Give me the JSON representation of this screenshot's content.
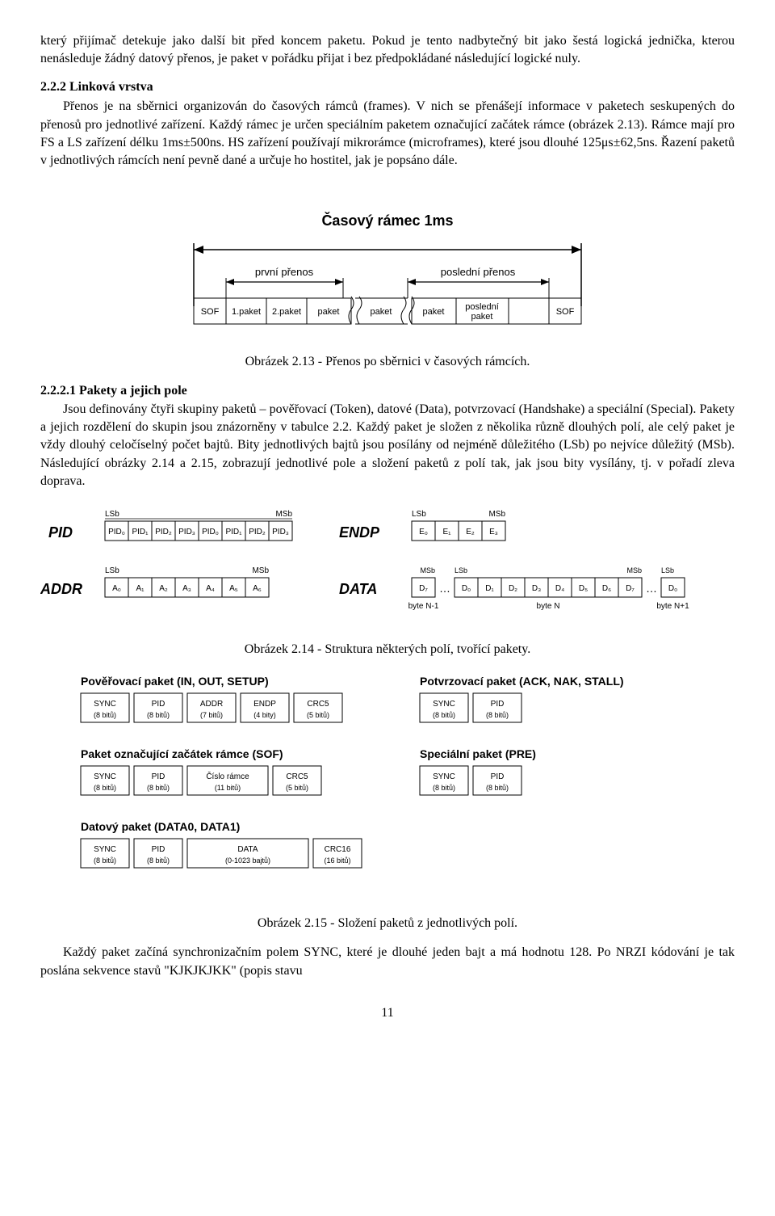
{
  "para1": "který přijímač detekuje jako další bit před koncem paketu. Pokud je tento nadbytečný bit jako šestá logická jednička, kterou nenásleduje žádný datový přenos, je paket v pořádku přijat i bez předpokládané následující logické nuly.",
  "sec222_title": "2.2.2 Linková vrstva",
  "sec222_para": "Přenos je na sběrnici organizován do časových rámců (frames). V nich se přenášejí informace v paketech seskupených do přenosů pro jednotlivé zařízení. Každý rámec je určen speciálním paketem označující začátek rámce (obrázek 2.13). Rámce mají pro FS a LS zařízení délku 1ms±500ns. HS zařízení používají mikrorámce (microframes), které jsou dlouhé 125μs±62,5ns. Řazení paketů v jednotlivých rámcích není pevně dané a určuje ho hostitel, jak je popsáno dále.",
  "fig213": {
    "title": "Časový rámec 1ms",
    "first_transfer": "první přenos",
    "last_transfer": "poslední přenos",
    "boxes": [
      "SOF",
      "1.paket",
      "2.paket",
      "paket",
      "paket",
      "poslední paket",
      "SOF"
    ]
  },
  "cap213": "Obrázek 2.13 - Přenos po sběrnici v časových rámcích.",
  "sec2221_title": "2.2.2.1 Pakety a jejich pole",
  "sec2221_para": "Jsou definovány čtyři skupiny paketů – pověřovací (Token), datové (Data), potvrzovací (Handshake) a speciální (Special). Pakety a jejich rozdělení do skupin jsou znázorněny v tabulce 2.2. Každý paket je složen z několika různě dlouhých polí, ale celý paket je vždy dlouhý celočíselný počet bajtů. Bity jednotlivých bajtů jsou posílány od nejméně důležitého (LSb) po nejvíce důležitý (MSb). Následující obrázky 2.14 a 2.15, zobrazují jednotlivé pole a složení paketů z polí tak, jak jsou bity vysílány, tj. v pořadí zleva doprava.",
  "fig214": {
    "labels": {
      "lsb": "LSb",
      "msb": "MSb"
    },
    "rows": {
      "PID": {
        "label": "PID",
        "cells": [
          "PID₀",
          "PID₁",
          "PID₂",
          "PID₃",
          "PID₀",
          "PID₁",
          "PID₂",
          "PID₃"
        ],
        "bars": [
          4,
          4
        ]
      },
      "ENDP": {
        "label": "ENDP",
        "cells": [
          "E₀",
          "E₁",
          "E₂",
          "E₃"
        ],
        "bars": []
      },
      "ADDR": {
        "label": "ADDR",
        "cells": [
          "A₀",
          "A₁",
          "A₂",
          "A₃",
          "A₄",
          "A₅",
          "A₆"
        ],
        "bars": []
      },
      "DATA": {
        "label": "DATA",
        "groups": [
          {
            "cells": [
              "D₇"
            ],
            "sub": "byte N-1",
            "lsb": false,
            "msb": true
          },
          {
            "cells": [
              "D₀",
              "D₁",
              "D₂",
              "D₃",
              "D₄",
              "D₅",
              "D₆",
              "D₇"
            ],
            "sub": "byte N",
            "lsb": true,
            "msb": true
          },
          {
            "cells": [
              "D₀"
            ],
            "sub": "byte N+1",
            "lsb": true,
            "msb": false
          }
        ]
      }
    }
  },
  "cap214": "Obrázek 2.14 - Struktura některých polí, tvořící pakety.",
  "fig215": {
    "groups": [
      {
        "title": "Pověřovací paket (IN, OUT, SETUP)",
        "fields": [
          {
            "n": "SYNC",
            "s": "(8 bitů)"
          },
          {
            "n": "PID",
            "s": "(8 bitů)"
          },
          {
            "n": "ADDR",
            "s": "(7 bitů)"
          },
          {
            "n": "ENDP",
            "s": "(4 bity)"
          },
          {
            "n": "CRC5",
            "s": "(5 bitů)"
          }
        ]
      },
      {
        "title": "Potvrzovací paket (ACK, NAK, STALL)",
        "fields": [
          {
            "n": "SYNC",
            "s": "(8 bitů)"
          },
          {
            "n": "PID",
            "s": "(8 bitů)"
          }
        ]
      },
      {
        "title": "Paket označující začátek rámce (SOF)",
        "fields": [
          {
            "n": "SYNC",
            "s": "(8 bitů)"
          },
          {
            "n": "PID",
            "s": "(8 bitů)"
          },
          {
            "n": "Číslo rámce",
            "s": "(11 bitů)",
            "w": 100
          },
          {
            "n": "CRC5",
            "s": "(5 bitů)"
          }
        ]
      },
      {
        "title": "Speciální paket (PRE)",
        "fields": [
          {
            "n": "SYNC",
            "s": "(8 bitů)"
          },
          {
            "n": "PID",
            "s": "(8 bitů)"
          }
        ]
      },
      {
        "title": "Datový paket (DATA0, DATA1)",
        "fields": [
          {
            "n": "SYNC",
            "s": "(8 bitů)"
          },
          {
            "n": "PID",
            "s": "(8 bitů)"
          },
          {
            "n": "DATA",
            "s": "(0-1023 bajtů)",
            "w": 150
          },
          {
            "n": "CRC16",
            "s": "(16 bitů)"
          }
        ],
        "full": true
      }
    ]
  },
  "cap215": "Obrázek 2.15 - Složení paketů z jednotlivých polí.",
  "final_para": "Každý paket začíná synchronizačním polem SYNC, které je dlouhé jeden bajt a má hodnotu 128. Po NRZI kódování je tak poslána sekvence stavů \"KJKJKJKK\" (popis stavu",
  "page_number": "11"
}
